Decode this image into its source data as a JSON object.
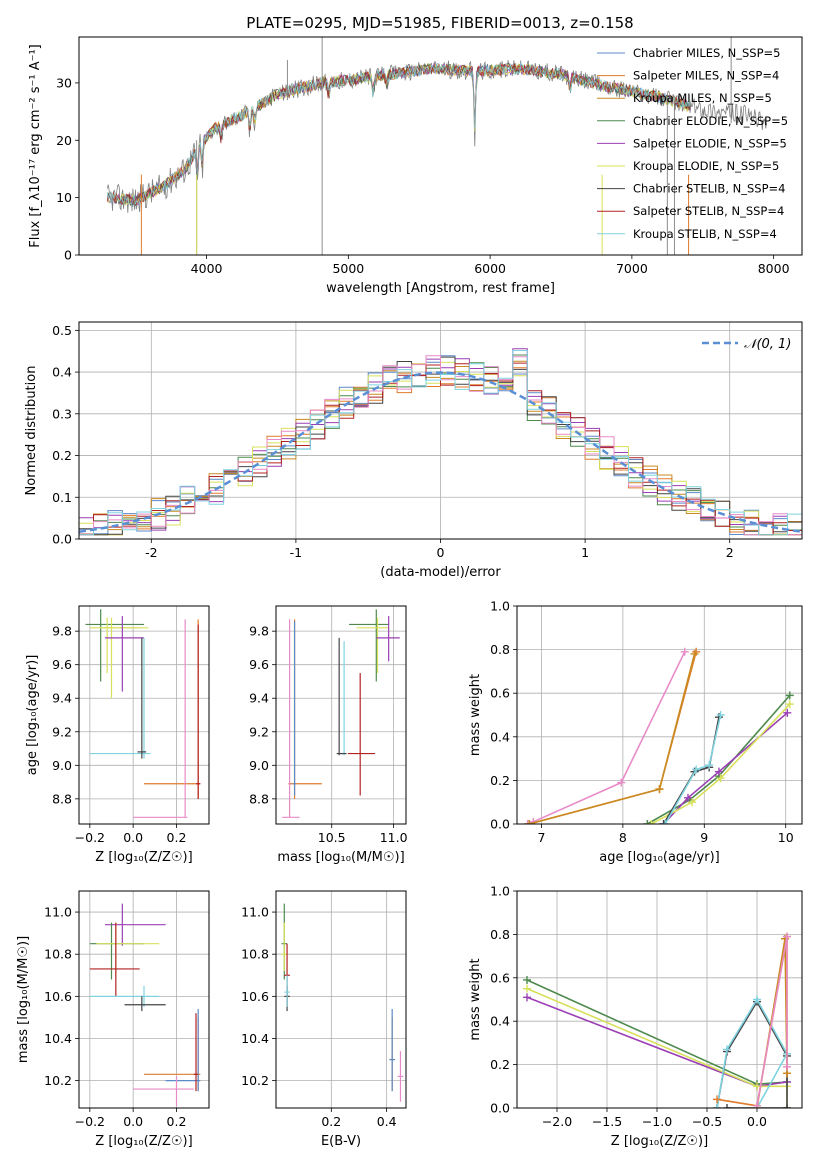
{
  "figure": {
    "title": "PLATE=0295, MJD=51985, FIBERID=0013, z=0.158"
  },
  "colors": {
    "spec_gray": "#808080",
    "gaussian": "#5a8fd6",
    "grid": "#b0b0b0"
  },
  "chart_data": [
    {
      "id": "spectrum",
      "type": "line",
      "title": "PLATE=0295, MJD=51985, FIBERID=0013, z=0.158",
      "xlabel": "wavelength [Angstrom, rest frame]",
      "ylabel": "Flux [f_λ10⁻¹⁷ erg cm⁻² s⁻¹ A⁻¹]",
      "xlim": [
        3100,
        8200
      ],
      "ylim": [
        0,
        38
      ],
      "xticks": [
        4000,
        5000,
        6000,
        7000,
        8000
      ],
      "yticks": [
        0,
        10,
        20,
        30
      ],
      "grid": false,
      "legend_position": "top-right",
      "legend": [
        {
          "label": "Chabrier MILES, N_SSP=5",
          "color": "#5b8ac9"
        },
        {
          "label": "Salpeter MILES, N_SSP=4",
          "color": "#e07b2c"
        },
        {
          "label": "Kroupa MILES, N_SSP=5",
          "color": "#c98a20"
        },
        {
          "label": "Chabrier ELODIE, N_SSP=5",
          "color": "#4e8a4e"
        },
        {
          "label": "Salpeter ELODIE, N_SSP=5",
          "color": "#9b3fb5"
        },
        {
          "label": "Kroupa ELODIE, N_SSP=5",
          "color": "#d7e05a"
        },
        {
          "label": "Chabrier STELIB, N_SSP=4",
          "color": "#444444"
        },
        {
          "label": "Salpeter STELIB, N_SSP=4",
          "color": "#b22222"
        },
        {
          "label": "Kroupa STELIB, N_SSP=4",
          "color": "#7fd3e0"
        }
      ],
      "continuum": {
        "x": [
          3300,
          3500,
          3700,
          3850,
          3950,
          4050,
          4300,
          4500,
          4800,
          5000,
          5300,
          5600,
          5900,
          6200,
          6500,
          6800,
          7000,
          7200,
          7400
        ],
        "y": [
          10,
          9.5,
          12,
          15,
          19,
          22,
          25,
          28,
          30,
          30.5,
          31.5,
          32.5,
          32,
          32.5,
          31.5,
          29.5,
          28.5,
          27.5,
          26
        ]
      },
      "data_tail": {
        "x": [
          7400,
          7600,
          7800,
          7900,
          7950
        ],
        "y": [
          26,
          25,
          24.5,
          23.5,
          23
        ]
      },
      "absorption_lines": [
        {
          "x": 3934,
          "depth": 6
        },
        {
          "x": 3969,
          "depth": 5
        },
        {
          "x": 4102,
          "depth": 3
        },
        {
          "x": 4304,
          "depth": 4
        },
        {
          "x": 4340,
          "depth": 3
        },
        {
          "x": 4861,
          "depth": 3
        },
        {
          "x": 5175,
          "depth": 4
        },
        {
          "x": 5270,
          "depth": 2
        },
        {
          "x": 5892,
          "depth": 12
        },
        {
          "x": 6563,
          "depth": 3
        }
      ],
      "sky_spikes": [
        {
          "x": 4815,
          "ymin": 0,
          "ymax": 38
        },
        {
          "x": 3930,
          "ymin": 0,
          "ymax": 20
        },
        {
          "x": 4570,
          "ymin": 27,
          "ymax": 34
        },
        {
          "x": 7250,
          "ymin": 0,
          "ymax": 28
        },
        {
          "x": 7300,
          "ymin": 0,
          "ymax": 27
        },
        {
          "x": 7700,
          "ymin": 23,
          "ymax": 38
        }
      ],
      "model_dropouts": [
        {
          "x": 3540,
          "color": "#e07b2c"
        },
        {
          "x": 3930,
          "color": "#d7e05a"
        },
        {
          "x": 6790,
          "color": "#d7e05a"
        },
        {
          "x": 7400,
          "color": "#e07b2c"
        }
      ]
    },
    {
      "id": "residuals",
      "type": "line",
      "xlabel": "(data-model)/error",
      "ylabel": "Normed distribution",
      "xlim": [
        -2.5,
        2.5
      ],
      "ylim": [
        0,
        0.52
      ],
      "xticks": [
        -2,
        -1,
        0,
        1,
        2
      ],
      "yticks": [
        0.0,
        0.1,
        0.2,
        0.3,
        0.4,
        0.5
      ],
      "grid": true,
      "legend_position": "top-right",
      "gaussian_label": "𝒩(0, 1)",
      "bin_width": 0.1,
      "histograms": [
        {
          "color": "#5b8ac9",
          "seed": 1
        },
        {
          "color": "#e07b2c",
          "seed": 2
        },
        {
          "color": "#c98a20",
          "seed": 3
        },
        {
          "color": "#4e8a4e",
          "seed": 4
        },
        {
          "color": "#9b3fb5",
          "seed": 5
        },
        {
          "color": "#d7e05a",
          "seed": 6
        },
        {
          "color": "#444444",
          "seed": 7
        },
        {
          "color": "#b22222",
          "seed": 8
        },
        {
          "color": "#e88ac7",
          "seed": 9
        },
        {
          "color": "#7fd3e0",
          "seed": 10
        }
      ]
    },
    {
      "id": "age_vs_Z",
      "type": "scatter",
      "xlabel": "Z [log₁₀(Z/Z☉)]",
      "ylabel": "age  [log₁₀(age/yr)]",
      "xlim": [
        -0.25,
        0.35
      ],
      "ylim": [
        8.65,
        9.95
      ],
      "xticks": [
        -0.2,
        0.0,
        0.2
      ],
      "xticklabels": [
        "−0.2",
        "0.0",
        "0.2"
      ],
      "yticks": [
        8.8,
        9.0,
        9.2,
        9.4,
        9.6,
        9.8
      ],
      "grid": true,
      "errorbars": [
        {
          "x": -0.15,
          "y": 9.84,
          "xlo": -0.22,
          "xhi": 0.05,
          "ylo": 9.5,
          "yhi": 9.93,
          "color": "#4e8a4e"
        },
        {
          "x": -0.12,
          "y": 9.82,
          "xlo": -0.2,
          "xhi": 0.07,
          "ylo": 9.55,
          "yhi": 9.88,
          "color": "#d7e05a"
        },
        {
          "x": -0.1,
          "y": 9.82,
          "xlo": -0.15,
          "xhi": 0.03,
          "ylo": 9.4,
          "yhi": 9.88,
          "color": "#d7e05a"
        },
        {
          "x": -0.05,
          "y": 9.76,
          "xlo": -0.13,
          "xhi": 0.05,
          "ylo": 9.44,
          "yhi": 9.89,
          "color": "#9b3fb5"
        },
        {
          "x": 0.05,
          "y": 9.07,
          "xlo": -0.2,
          "xhi": 0.08,
          "ylo": 9.04,
          "yhi": 9.76,
          "color": "#7fd3e0"
        },
        {
          "x": 0.04,
          "y": 9.08,
          "xlo": 0.02,
          "xhi": 0.06,
          "ylo": 9.04,
          "yhi": 9.76,
          "color": "#444444"
        },
        {
          "x": 0.3,
          "y": 8.89,
          "xlo": 0.05,
          "xhi": 0.31,
          "ylo": 8.8,
          "yhi": 9.87,
          "color": "#e07b2c"
        },
        {
          "x": 0.3,
          "y": 8.89,
          "xlo": 0.29,
          "xhi": 0.31,
          "ylo": 8.8,
          "yhi": 9.84,
          "color": "#b22222"
        },
        {
          "x": 0.24,
          "y": 8.69,
          "xlo": 0.0,
          "xhi": 0.25,
          "ylo": 8.69,
          "yhi": 9.87,
          "color": "#e88ac7"
        }
      ]
    },
    {
      "id": "age_vs_mass",
      "type": "scatter",
      "xlabel": "mass [log₁₀(M/M☉)]",
      "ylabel": "",
      "xlim": [
        10.05,
        11.1
      ],
      "ylim": [
        8.65,
        9.95
      ],
      "xticks": [
        10.5,
        11.0
      ],
      "xticklabels": [
        "10.5",
        "11.0"
      ],
      "yticks": [
        8.8,
        9.0,
        9.2,
        9.4,
        9.6,
        9.8
      ],
      "grid": true,
      "errorbars": [
        {
          "x": 10.86,
          "y": 9.84,
          "xlo": 10.64,
          "xhi": 10.96,
          "ylo": 9.5,
          "yhi": 9.93,
          "color": "#4e8a4e"
        },
        {
          "x": 10.87,
          "y": 9.82,
          "xlo": 10.7,
          "xhi": 10.96,
          "ylo": 9.55,
          "yhi": 9.88,
          "color": "#d7e05a"
        },
        {
          "x": 10.96,
          "y": 9.76,
          "xlo": 10.86,
          "xhi": 11.05,
          "ylo": 9.62,
          "yhi": 9.89,
          "color": "#9b3fb5"
        },
        {
          "x": 10.6,
          "y": 9.07,
          "xlo": 10.56,
          "xhi": 10.6,
          "ylo": 9.06,
          "yhi": 9.74,
          "color": "#7fd3e0"
        },
        {
          "x": 10.56,
          "y": 9.07,
          "xlo": 10.54,
          "xhi": 10.62,
          "ylo": 9.06,
          "yhi": 9.76,
          "color": "#444444"
        },
        {
          "x": 10.73,
          "y": 9.07,
          "xlo": 10.63,
          "xhi": 10.85,
          "ylo": 8.82,
          "yhi": 9.55,
          "color": "#b22222"
        },
        {
          "x": 10.2,
          "y": 8.89,
          "xlo": 10.15,
          "xhi": 10.42,
          "ylo": 8.8,
          "yhi": 9.87,
          "color": "#e07b2c"
        },
        {
          "x": 10.2,
          "y": 8.89,
          "xlo": 10.19,
          "xhi": 10.21,
          "ylo": 8.82,
          "yhi": 9.86,
          "color": "#5b8ac9"
        },
        {
          "x": 10.16,
          "y": 8.69,
          "xlo": 10.1,
          "xhi": 10.24,
          "ylo": 8.69,
          "yhi": 9.87,
          "color": "#e88ac7"
        }
      ]
    },
    {
      "id": "weight_vs_age",
      "type": "line",
      "xlabel": "age  [log₁₀(age/yr)]",
      "ylabel": "mass weight",
      "xlim": [
        6.7,
        10.2
      ],
      "ylim": [
        0,
        1
      ],
      "xticks": [
        7,
        8,
        9,
        10
      ],
      "yticks": [
        0.0,
        0.2,
        0.4,
        0.6,
        0.8,
        1.0
      ],
      "grid": true,
      "series": [
        {
          "color": "#e88ac7",
          "x": [
            6.83,
            6.9,
            7.98,
            8.76
          ],
          "y": [
            0.0,
            0.01,
            0.19,
            0.79
          ]
        },
        {
          "color": "#e07b2c",
          "x": [
            6.85,
            8.45,
            8.9
          ],
          "y": [
            0.0,
            0.16,
            0.79
          ]
        },
        {
          "color": "#c98a20",
          "x": [
            6.85,
            8.45,
            8.88
          ],
          "y": [
            0.0,
            0.16,
            0.78
          ]
        },
        {
          "color": "#4e8a4e",
          "x": [
            8.3,
            8.82,
            9.18,
            10.05
          ],
          "y": [
            0.0,
            0.11,
            0.22,
            0.59
          ]
        },
        {
          "color": "#9b3fb5",
          "x": [
            8.5,
            8.8,
            9.18,
            10.02
          ],
          "y": [
            0.0,
            0.12,
            0.24,
            0.51
          ]
        },
        {
          "color": "#d7e05a",
          "x": [
            8.35,
            8.85,
            9.2,
            10.05
          ],
          "y": [
            0.0,
            0.1,
            0.21,
            0.55
          ]
        },
        {
          "color": "#444444",
          "x": [
            8.5,
            8.88,
            9.06,
            9.18
          ],
          "y": [
            0.0,
            0.24,
            0.26,
            0.49
          ]
        },
        {
          "color": "#7fd3e0",
          "x": [
            8.52,
            8.9,
            9.06,
            9.2
          ],
          "y": [
            0.0,
            0.25,
            0.27,
            0.5
          ]
        }
      ]
    },
    {
      "id": "mass_vs_Z",
      "type": "scatter",
      "xlabel": "Z [log₁₀(Z/Z☉)]",
      "ylabel": "mass [log₁₀(M/M☉)]",
      "xlim": [
        -0.25,
        0.35
      ],
      "ylim": [
        10.07,
        11.1
      ],
      "xticks": [
        -0.2,
        0.0,
        0.2
      ],
      "xticklabels": [
        "−0.2",
        "0.0",
        "0.2"
      ],
      "yticks": [
        10.2,
        10.4,
        10.6,
        10.8,
        11.0
      ],
      "grid": true,
      "errorbars": [
        {
          "x": -0.05,
          "y": 10.94,
          "xlo": -0.13,
          "xhi": 0.15,
          "ylo": 10.84,
          "yhi": 11.04,
          "color": "#9b3fb5"
        },
        {
          "x": -0.1,
          "y": 10.85,
          "xlo": -0.2,
          "xhi": 0.05,
          "ylo": 10.68,
          "yhi": 10.95,
          "color": "#4e8a4e"
        },
        {
          "x": -0.08,
          "y": 10.85,
          "xlo": -0.17,
          "xhi": 0.12,
          "ylo": 10.7,
          "yhi": 10.95,
          "color": "#d7e05a"
        },
        {
          "x": -0.08,
          "y": 10.73,
          "xlo": -0.2,
          "xhi": 0.03,
          "ylo": 10.6,
          "yhi": 10.95,
          "color": "#b22222"
        },
        {
          "x": 0.05,
          "y": 10.6,
          "xlo": -0.2,
          "xhi": 0.12,
          "ylo": 10.55,
          "yhi": 10.65,
          "color": "#7fd3e0"
        },
        {
          "x": 0.04,
          "y": 10.56,
          "xlo": -0.04,
          "xhi": 0.15,
          "ylo": 10.53,
          "yhi": 10.6,
          "color": "#444444"
        },
        {
          "x": 0.3,
          "y": 10.23,
          "xlo": 0.05,
          "xhi": 0.31,
          "ylo": 10.15,
          "yhi": 10.5,
          "color": "#e07b2c"
        },
        {
          "x": 0.3,
          "y": 10.2,
          "xlo": 0.15,
          "xhi": 0.31,
          "ylo": 10.15,
          "yhi": 10.54,
          "color": "#5b8ac9"
        },
        {
          "x": 0.29,
          "y": 10.23,
          "xlo": 0.28,
          "xhi": 0.3,
          "ylo": 10.15,
          "yhi": 10.52,
          "color": "#b22222"
        },
        {
          "x": 0.2,
          "y": 10.16,
          "xlo": 0.0,
          "xhi": 0.28,
          "ylo": 10.08,
          "yhi": 10.22,
          "color": "#e88ac7"
        }
      ]
    },
    {
      "id": "mass_vs_EBV",
      "type": "scatter",
      "xlabel": "E(B-V)",
      "ylabel": "",
      "xlim": [
        0.0,
        0.47
      ],
      "ylim": [
        10.07,
        11.1
      ],
      "xticks": [
        0.2,
        0.4
      ],
      "xticklabels": [
        "0.2",
        "0.4"
      ],
      "yticks": [
        10.2,
        10.4,
        10.6,
        10.8,
        11.0
      ],
      "grid": true,
      "errorbars": [
        {
          "x": 0.03,
          "y": 10.85,
          "xlo": 0.02,
          "xhi": 0.04,
          "ylo": 10.68,
          "yhi": 11.04,
          "color": "#4e8a4e"
        },
        {
          "x": 0.03,
          "y": 10.8,
          "xlo": 0.02,
          "xhi": 0.04,
          "ylo": 10.72,
          "yhi": 10.95,
          "color": "#d7e05a"
        },
        {
          "x": 0.04,
          "y": 10.7,
          "xlo": 0.03,
          "xhi": 0.05,
          "ylo": 10.55,
          "yhi": 10.85,
          "color": "#b22222"
        },
        {
          "x": 0.04,
          "y": 10.6,
          "xlo": 0.03,
          "xhi": 0.05,
          "ylo": 10.53,
          "yhi": 10.65,
          "color": "#444444"
        },
        {
          "x": 0.04,
          "y": 10.62,
          "xlo": 0.03,
          "xhi": 0.05,
          "ylo": 10.55,
          "yhi": 10.7,
          "color": "#7fd3e0"
        },
        {
          "x": 0.42,
          "y": 10.3,
          "xlo": 0.41,
          "xhi": 0.43,
          "ylo": 10.15,
          "yhi": 10.5,
          "color": "#e07b2c"
        },
        {
          "x": 0.42,
          "y": 10.3,
          "xlo": 0.41,
          "xhi": 0.43,
          "ylo": 10.15,
          "yhi": 10.54,
          "color": "#5b8ac9"
        },
        {
          "x": 0.45,
          "y": 10.22,
          "xlo": 0.44,
          "xhi": 0.46,
          "ylo": 10.1,
          "yhi": 10.34,
          "color": "#e88ac7"
        }
      ]
    },
    {
      "id": "weight_vs_Z",
      "type": "line",
      "xlabel": "Z [log₁₀(Z/Z☉)]",
      "ylabel": "mass weight",
      "xlim": [
        -2.4,
        0.45
      ],
      "ylim": [
        0,
        1
      ],
      "xticks": [
        -2.0,
        -1.5,
        -1.0,
        -0.5,
        0.0
      ],
      "xticklabels": [
        "−2.0",
        "−1.5",
        "−1.0",
        "−0.5",
        "0.0"
      ],
      "yticks": [
        0.0,
        0.2,
        0.4,
        0.6,
        0.8,
        1.0
      ],
      "grid": true,
      "series": [
        {
          "color": "#4e8a4e",
          "x": [
            -2.3,
            0.0,
            0.3
          ],
          "y": [
            0.59,
            0.11,
            0.12
          ]
        },
        {
          "color": "#9b3fb5",
          "x": [
            -2.3,
            0.0,
            0.3
          ],
          "y": [
            0.51,
            0.1,
            0.12
          ]
        },
        {
          "color": "#d7e05a",
          "x": [
            -2.3,
            0.0,
            0.3,
            0.3
          ],
          "y": [
            0.55,
            0.1,
            0.1,
            0.0
          ]
        },
        {
          "color": "#444444",
          "x": [
            -0.4,
            -0.3,
            0.0,
            0.3,
            0.3,
            -0.3
          ],
          "y": [
            0.0,
            0.26,
            0.49,
            0.24,
            0.0,
            0.0
          ]
        },
        {
          "color": "#7fd3e0",
          "x": [
            -0.4,
            -0.3,
            0.0,
            0.3,
            0.0
          ],
          "y": [
            0.0,
            0.27,
            0.5,
            0.25,
            0.0
          ]
        },
        {
          "color": "#e07b2c",
          "x": [
            -0.4,
            0.0,
            0.3,
            0.3
          ],
          "y": [
            0.04,
            0.01,
            0.79,
            0.16
          ]
        },
        {
          "color": "#c98a20",
          "x": [
            0.0,
            0.28,
            0.3
          ],
          "y": [
            0.0,
            0.78,
            0.16
          ]
        },
        {
          "color": "#e88ac7",
          "x": [
            0.0,
            0.3,
            0.3
          ],
          "y": [
            0.01,
            0.79,
            0.19
          ]
        }
      ]
    }
  ]
}
